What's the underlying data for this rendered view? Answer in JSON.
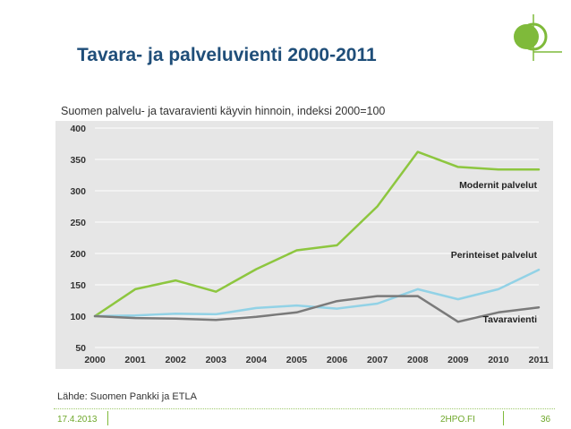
{
  "slide": {
    "title": "Tavara- ja palveluvienti 2000-2011",
    "source": "Lähde: Suomen Pankki ja ETLA",
    "footer_date": "17.4.2013",
    "footer_site": "2HPO.FI",
    "page_number": "36"
  },
  "colors": {
    "title": "#1f4e79",
    "plot_bg": "#e6e6e6",
    "accent": "#7fba3a"
  },
  "chart_data": {
    "type": "line",
    "title": "Suomen palvelu- ja tavaravienti käyvin hinnoin, indeksi 2000=100",
    "x": [
      "2000",
      "2001",
      "2002",
      "2003",
      "2004",
      "2005",
      "2006",
      "2007",
      "2008",
      "2009",
      "2010",
      "2011"
    ],
    "ylim": [
      50,
      400
    ],
    "yticks": [
      50,
      100,
      150,
      200,
      250,
      300,
      350,
      400
    ],
    "grid": true,
    "series": [
      {
        "name": "Modernit palvelut",
        "color": "#8dc63f",
        "values": [
          100,
          143,
          157,
          139,
          175,
          205,
          213,
          275,
          362,
          338,
          334,
          334
        ]
      },
      {
        "name": "Perinteiset palvelut",
        "color": "#92d2e6",
        "values": [
          100,
          101,
          104,
          103,
          113,
          117,
          112,
          120,
          143,
          127,
          143,
          174
        ]
      },
      {
        "name": "Tavaravienti",
        "color": "#7a7a7a",
        "values": [
          100,
          97,
          96,
          94,
          99,
          106,
          124,
          132,
          132,
          91,
          106,
          114
        ]
      }
    ]
  }
}
